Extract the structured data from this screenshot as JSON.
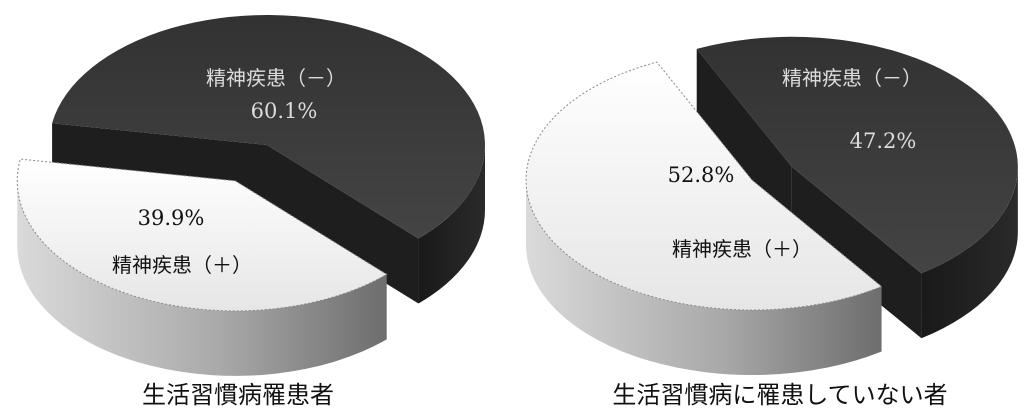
{
  "chart_data": [
    {
      "type": "pie",
      "three_d": true,
      "title": "生活習慣病罹患者",
      "slices": [
        {
          "label": "精神疾患（－）",
          "value": 60.1,
          "value_label": "60.1%",
          "color": "#3b3b3b",
          "exploded": false
        },
        {
          "label": "精神疾患（＋）",
          "value": 39.9,
          "value_label": "39.9%",
          "color": "#f2f2f2",
          "exploded": true
        }
      ]
    },
    {
      "type": "pie",
      "three_d": true,
      "title": "生活習慣病に罹患していない者",
      "slices": [
        {
          "label": "精神疾患（－）",
          "value": 47.2,
          "value_label": "47.2%",
          "color": "#3b3b3b",
          "exploded": true
        },
        {
          "label": "精神疾患（＋）",
          "value": 52.8,
          "value_label": "52.8%",
          "color": "#f2f2f2",
          "exploded": false
        }
      ]
    }
  ]
}
